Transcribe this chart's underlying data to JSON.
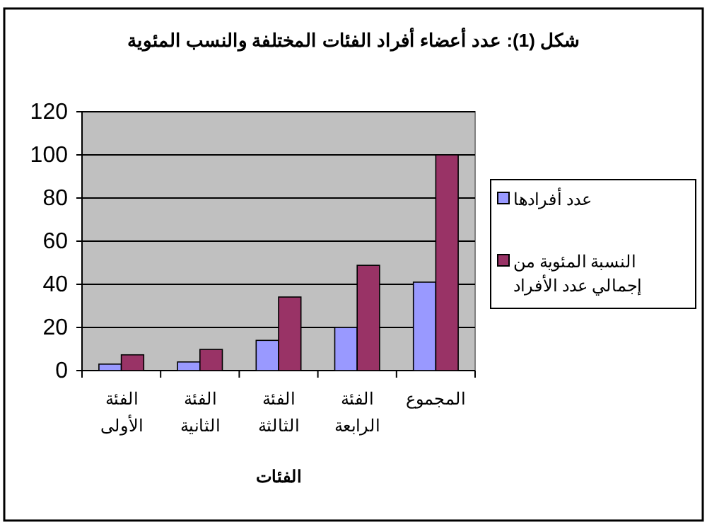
{
  "chart_data": {
    "type": "bar",
    "title": "شكل (1): عدد أعضاء أفراد الفئات المختلفة والنسب المئوية",
    "xlabel": "الفئات",
    "categories": [
      "الفئة الأولى",
      "الفئة الثانية",
      "الفئة الثالثة",
      "الفئة الرابعة",
      "المجموع"
    ],
    "series": [
      {
        "name": "عدد أفرادها",
        "color": "#9999ff",
        "values": [
          3,
          4,
          14,
          20,
          41
        ]
      },
      {
        "name": "النسبة المئوية من إجمالي عدد الأفراد",
        "color": "#993366",
        "values": [
          7.3,
          9.8,
          34.1,
          48.8,
          100
        ]
      }
    ],
    "ylim": [
      0,
      120
    ],
    "yticks": [
      0,
      20,
      40,
      60,
      80,
      100,
      120
    ],
    "grid": "y",
    "legend": "right"
  }
}
